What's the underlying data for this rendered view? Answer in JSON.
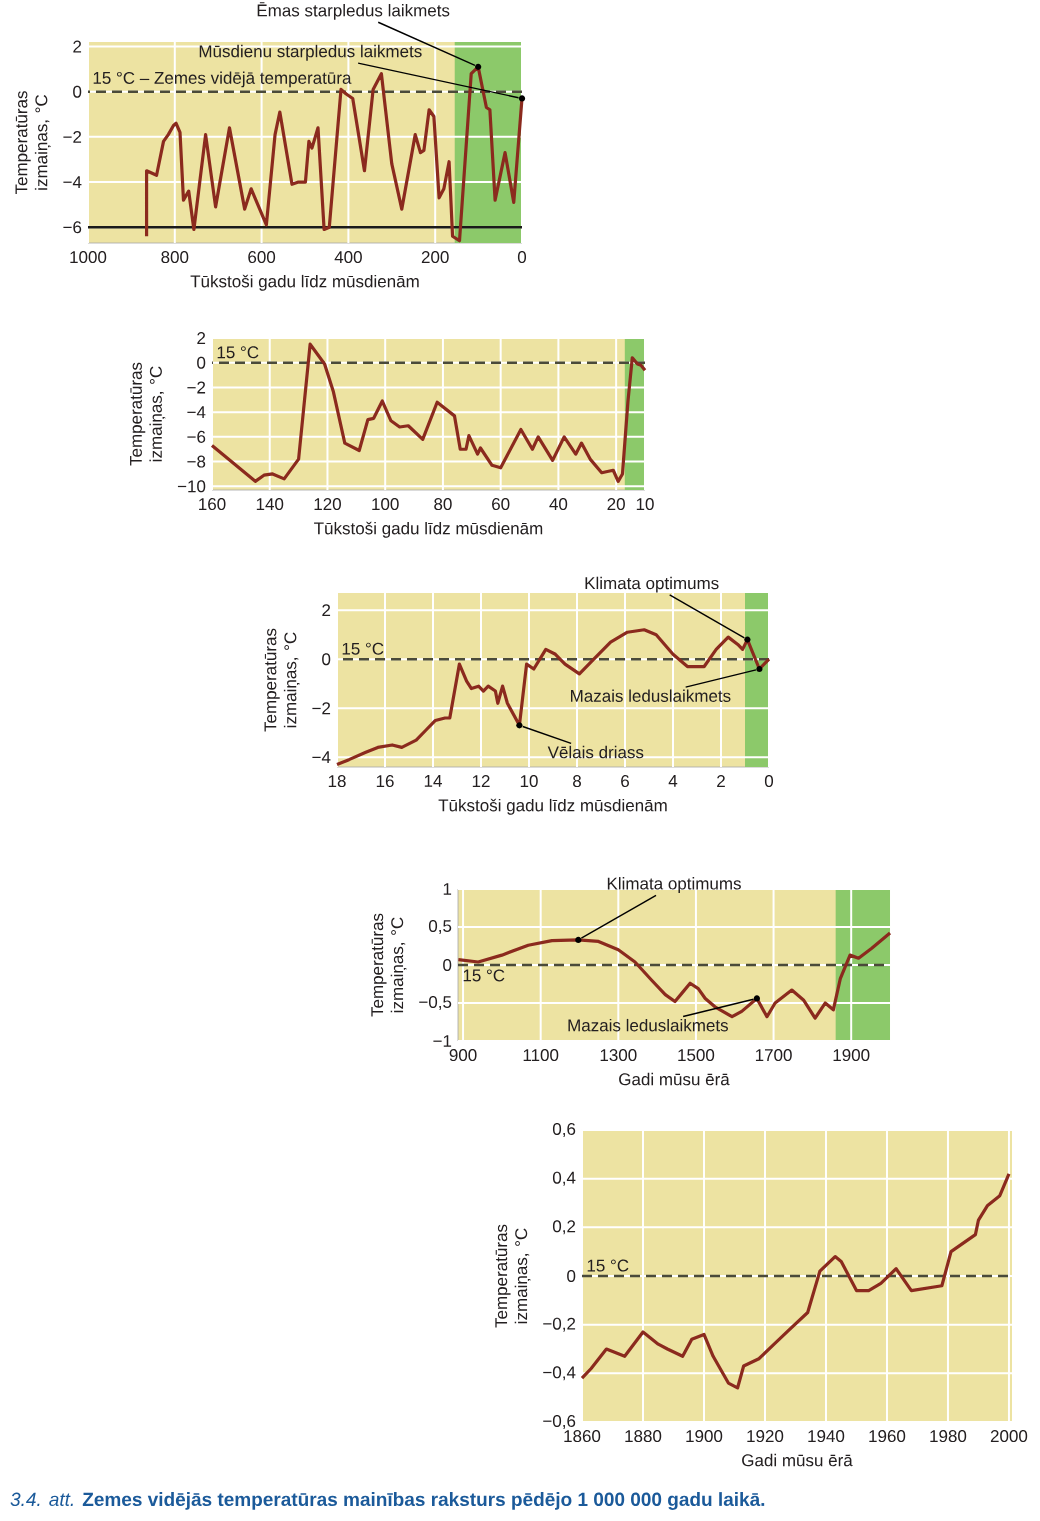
{
  "chart_data": [
    {
      "type": "line",
      "xlabel": "Tūkstoši gadu līdz mūsdienām",
      "ylabel": "Temperatūras izmaiņas, °C",
      "x": [
        865,
        865,
        842,
        826,
        815,
        803,
        797,
        788,
        780,
        768,
        756,
        729,
        706,
        674,
        639,
        624,
        589,
        569,
        558,
        530,
        515,
        499,
        491,
        484,
        470,
        456,
        444,
        417,
        405,
        390,
        363,
        343,
        324,
        300,
        277,
        246,
        234,
        226,
        214,
        203,
        191,
        180,
        168,
        160,
        144,
        117,
        101,
        82,
        74,
        62,
        39,
        19,
        0
      ],
      "series": [
        {
          "color": "#8b2a1e",
          "values": [
            -6.4,
            -3.5,
            -3.7,
            -2.2,
            -1.9,
            -1.5,
            -1.4,
            -1.8,
            -4.8,
            -4.4,
            -6.1,
            -1.9,
            -5.1,
            -1.6,
            -5.2,
            -4.3,
            -5.9,
            -1.9,
            -0.9,
            -4.1,
            -4.0,
            -4.0,
            -2.2,
            -2.5,
            -1.6,
            -6.1,
            -6.0,
            0.1,
            -0.1,
            -0.3,
            -3.5,
            0.1,
            0.8,
            -3.2,
            -5.2,
            -1.9,
            -2.7,
            -2.6,
            -0.8,
            -1.1,
            -4.7,
            -4.3,
            -3.1,
            -6.4,
            -6.6,
            0.8,
            1.1,
            -0.7,
            -0.8,
            -4.8,
            -2.7,
            -4.9,
            -0.3
          ]
        }
      ],
      "xlim": [
        1000,
        0
      ],
      "ylim": [
        -6.7,
        2.2
      ],
      "xticks": [
        1000,
        800,
        600,
        400,
        200,
        0
      ],
      "yticks": [
        2,
        0,
        {
          "value": -2,
          "label": "−2"
        },
        {
          "value": -4,
          "label": "−4"
        },
        {
          "value": -6,
          "label": "−6"
        }
      ],
      "grid": true,
      "bands": [
        {
          "axis": "x",
          "from": 155,
          "to": 0,
          "color": "#8cc96a"
        }
      ],
      "ref_lines": [
        {
          "axis": "y",
          "value": 0,
          "label": "15 °C – Zemes vidējā temperatūra",
          "color": "#4a4a3a",
          "line_style": "dashed"
        },
        {
          "axis": "y",
          "value": -6,
          "color": "#1a1a1a",
          "line_style": "solid"
        }
      ],
      "annotations": [
        {
          "text": "Ēmas starpledus laikmets",
          "x": 101,
          "y": 1.1
        },
        {
          "text": "Mūsdienu starpledus laikmets",
          "x": 0,
          "y": -0.3
        }
      ]
    },
    {
      "type": "line",
      "xlabel": "Tūkstoši gadu līdz mūsdienām",
      "ylabel": "Temperatūras izmaiņas, °C",
      "x": [
        160,
        145,
        142,
        139,
        135,
        130,
        126,
        121,
        118,
        114,
        109,
        106,
        104,
        101,
        98,
        95,
        92,
        87,
        82,
        76,
        74,
        72,
        71,
        68,
        67,
        63,
        60,
        53,
        49,
        47,
        42,
        38,
        34,
        32,
        29,
        25,
        21,
        19.3,
        17.8,
        15.9,
        14.4,
        12.6,
        11.4,
        10
      ],
      "series": [
        {
          "color": "#8b2a1e",
          "values": [
            -6.7,
            -9.6,
            -9.1,
            -9.0,
            -9.4,
            -7.8,
            1.5,
            -0.1,
            -2.3,
            -6.5,
            -7.1,
            -4.6,
            -4.5,
            -3.1,
            -4.7,
            -5.2,
            -5.1,
            -6.2,
            -3.2,
            -4.3,
            -7.0,
            -7.0,
            -5.9,
            -7.4,
            -6.9,
            -8.3,
            -8.5,
            -5.4,
            -7.0,
            -6.0,
            -7.9,
            -6.0,
            -7.4,
            -6.5,
            -7.8,
            -8.9,
            -8.7,
            -9.6,
            -9.0,
            -3.1,
            0.4,
            -0.1,
            -0.2,
            -0.6
          ]
        }
      ],
      "xlim": [
        160,
        10
      ],
      "ylim": [
        -10.3,
        2
      ],
      "xticks": [
        160,
        140,
        120,
        100,
        80,
        60,
        40,
        20,
        10
      ],
      "yticks": [
        2,
        0,
        {
          "value": -2,
          "label": "−2"
        },
        {
          "value": -4,
          "label": "−4"
        },
        {
          "value": -6,
          "label": "−6"
        },
        {
          "value": -8,
          "label": "−8"
        },
        {
          "value": -10,
          "label": "−10"
        }
      ],
      "grid": true,
      "bands": [
        {
          "axis": "x",
          "from": 17,
          "to": 10,
          "color": "#8cc96a"
        }
      ],
      "ref_lines": [
        {
          "axis": "y",
          "value": 0,
          "label": "15 °C",
          "color": "#4a4a3a",
          "line_style": "dashed"
        }
      ]
    },
    {
      "type": "line",
      "xlabel": "Tūkstoši gadu līdz mūsdienām",
      "ylabel": "Temperatūras izmaiņas, °C",
      "x": [
        18.0,
        17.5,
        16.8,
        16.3,
        15.7,
        15.3,
        14.7,
        14.3,
        13.9,
        13.5,
        13.3,
        12.9,
        12.6,
        12.4,
        12.1,
        11.9,
        11.7,
        11.4,
        11.3,
        11.1,
        10.9,
        10.4,
        10.1,
        9.8,
        9.3,
        8.9,
        8.5,
        7.9,
        7.3,
        6.6,
        5.9,
        5.2,
        4.7,
        4.0,
        3.4,
        2.7,
        2.2,
        1.7,
        1.3,
        1.1,
        0.9,
        0.4,
        0.0
      ],
      "series": [
        {
          "color": "#8b2a1e",
          "values": [
            -4.3,
            -4.1,
            -3.8,
            -3.6,
            -3.5,
            -3.6,
            -3.3,
            -2.9,
            -2.5,
            -2.4,
            -2.4,
            -0.2,
            -0.9,
            -1.2,
            -1.1,
            -1.3,
            -1.1,
            -1.3,
            -1.8,
            -1.1,
            -1.8,
            -2.7,
            -0.2,
            -0.4,
            0.4,
            0.2,
            -0.2,
            -0.6,
            0.0,
            0.7,
            1.1,
            1.2,
            1.0,
            0.2,
            -0.3,
            -0.3,
            0.4,
            0.9,
            0.6,
            0.4,
            0.8,
            -0.4,
            0.0
          ]
        }
      ],
      "xlim": [
        18,
        0
      ],
      "ylim": [
        -4.4,
        2.7
      ],
      "xticks": [
        18,
        16,
        14,
        12,
        10,
        8,
        6,
        4,
        2,
        0
      ],
      "yticks": [
        2,
        0,
        {
          "value": -2,
          "label": "−2"
        },
        {
          "value": -4,
          "label": "−4"
        }
      ],
      "grid": true,
      "bands": [
        {
          "axis": "x",
          "from": 1.0,
          "to": 0,
          "color": "#8cc96a"
        }
      ],
      "ref_lines": [
        {
          "axis": "y",
          "value": 0,
          "label": "15 °C",
          "color": "#4a4a3a",
          "line_style": "dashed"
        }
      ],
      "annotations": [
        {
          "text": "Klimata optimums",
          "x": 0.9,
          "y": 0.8
        },
        {
          "text": "Mazais leduslaikmets",
          "x": 0.4,
          "y": -0.4
        },
        {
          "text": "Vēlais driass",
          "x": 10.4,
          "y": -2.7
        }
      ]
    },
    {
      "type": "line",
      "xlabel": "Gadi mūsu ērā",
      "ylabel": "Temperatūras izmaiņas, °C",
      "x": [
        888,
        939,
        1000,
        1068,
        1129,
        1197,
        1249,
        1300,
        1343,
        1386,
        1421,
        1446,
        1464,
        1485,
        1506,
        1524,
        1549,
        1593,
        1618,
        1657,
        1683,
        1704,
        1747,
        1777,
        1807,
        1833,
        1854,
        1872,
        1897,
        1919,
        1953,
        2000
      ],
      "series": [
        {
          "color": "#8b2a1e",
          "values": [
            0.07,
            0.04,
            0.13,
            0.26,
            0.32,
            0.33,
            0.31,
            0.2,
            0.04,
            -0.2,
            -0.39,
            -0.48,
            -0.37,
            -0.24,
            -0.31,
            -0.44,
            -0.55,
            -0.68,
            -0.61,
            -0.44,
            -0.68,
            -0.5,
            -0.33,
            -0.46,
            -0.7,
            -0.5,
            -0.59,
            -0.18,
            0.13,
            0.09,
            0.22,
            0.42
          ]
        }
      ],
      "xlim": [
        887,
        2000
      ],
      "ylim": [
        -1,
        1
      ],
      "xticks": [
        900,
        1100,
        1300,
        1500,
        1700,
        1900
      ],
      "yticks": [
        1,
        {
          "value": 0.5,
          "label": "0,5"
        },
        0,
        {
          "value": -0.5,
          "label": "−0,5"
        },
        {
          "value": -1,
          "label": "−1"
        }
      ],
      "grid": true,
      "bands": [
        {
          "axis": "x",
          "from": 1860,
          "to": 2000,
          "color": "#8cc96a"
        }
      ],
      "ref_lines": [
        {
          "axis": "y",
          "value": 0,
          "label": "15 °C",
          "color": "#4a4a3a",
          "line_style": "dashed"
        }
      ],
      "annotations": [
        {
          "text": "Klimata optimums",
          "x": 1197,
          "y": 0.33
        },
        {
          "text": "Mazais leduslaikmets",
          "x": 1657,
          "y": -0.44
        }
      ]
    },
    {
      "type": "line",
      "xlabel": "Gadi mūsu ērā",
      "ylabel": "Temperatūras izmaiņas, °C",
      "x": [
        1860,
        1863,
        1868,
        1874,
        1880,
        1885,
        1888,
        1893,
        1896,
        1900,
        1903,
        1908,
        1911,
        1913,
        1918,
        1923,
        1928,
        1934,
        1938,
        1943,
        1945,
        1950,
        1954,
        1958,
        1963,
        1968,
        1978,
        1981,
        1989,
        1990,
        1993,
        1997,
        2000
      ],
      "series": [
        {
          "color": "#8b2a1e",
          "values": [
            -0.42,
            -0.38,
            -0.3,
            -0.33,
            -0.23,
            -0.28,
            -0.3,
            -0.33,
            -0.26,
            -0.24,
            -0.33,
            -0.44,
            -0.46,
            -0.37,
            -0.34,
            -0.28,
            -0.22,
            -0.15,
            0.02,
            0.08,
            0.06,
            -0.06,
            -0.06,
            -0.03,
            0.03,
            -0.06,
            -0.04,
            0.1,
            0.17,
            0.23,
            0.29,
            0.33,
            0.42
          ]
        }
      ],
      "xlim": [
        1860,
        2001
      ],
      "ylim": [
        -0.6,
        0.6
      ],
      "xticks": [
        1860,
        1880,
        1900,
        1920,
        1940,
        1960,
        1980,
        2000
      ],
      "yticks": [
        {
          "value": 0.6,
          "label": "0,6"
        },
        {
          "value": 0.4,
          "label": "0,4"
        },
        {
          "value": 0.2,
          "label": "0,2"
        },
        0,
        {
          "value": -0.2,
          "label": "−0,2"
        },
        {
          "value": -0.4,
          "label": "−0,4"
        },
        {
          "value": -0.6,
          "label": "−0,6"
        }
      ],
      "grid": true,
      "ref_lines": [
        {
          "axis": "y",
          "value": 0,
          "label": "15 °C",
          "color": "#4a4a3a",
          "line_style": "dashed"
        }
      ],
      "annotations": [
        "*3.4. att.* **Zemes vidējās temperatūras mainības raksturs pēdējo 1 000 000 gadu laikā.**"
      ]
    }
  ]
}
